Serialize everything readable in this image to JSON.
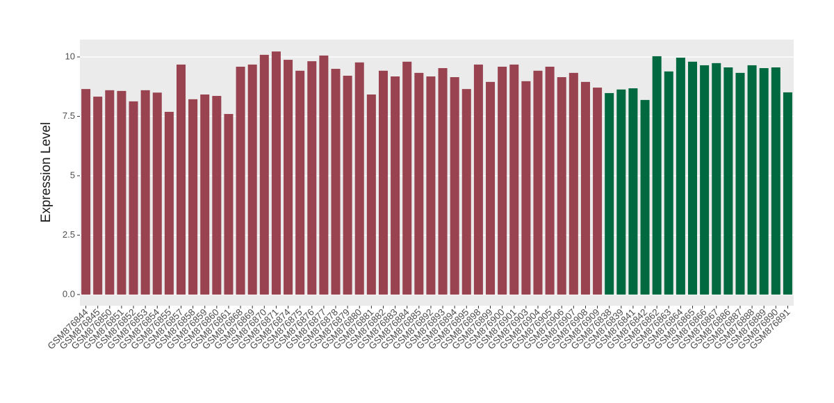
{
  "chart_data": {
    "type": "bar",
    "y_label": "Expression Level",
    "categories": [
      "GSM876844",
      "GSM876845",
      "GSM876850",
      "GSM876851",
      "GSM876852",
      "GSM876853",
      "GSM876854",
      "GSM876855",
      "GSM876857",
      "GSM876858",
      "GSM876859",
      "GSM876860",
      "GSM876861",
      "GSM876868",
      "GSM876869",
      "GSM876870",
      "GSM876871",
      "GSM876874",
      "GSM876875",
      "GSM876876",
      "GSM876877",
      "GSM876878",
      "GSM876879",
      "GSM876880",
      "GSM876881",
      "GSM876882",
      "GSM876883",
      "GSM876884",
      "GSM876885",
      "GSM876892",
      "GSM876893",
      "GSM876894",
      "GSM876895",
      "GSM876898",
      "GSM876899",
      "GSM876900",
      "GSM876901",
      "GSM876903",
      "GSM876904",
      "GSM876905",
      "GSM876906",
      "GSM876907",
      "GSM876908",
      "GSM876909",
      "GSM876838",
      "GSM876839",
      "GSM876841",
      "GSM876842",
      "GSM876862",
      "GSM876863",
      "GSM876864",
      "GSM876865",
      "GSM876866",
      "GSM876867",
      "GSM876886",
      "GSM876887",
      "GSM876888",
      "GSM876889",
      "GSM876890",
      "GSM876891"
    ],
    "values": [
      8.65,
      8.33,
      8.6,
      8.57,
      8.13,
      8.6,
      8.5,
      7.69,
      9.68,
      8.22,
      8.42,
      8.36,
      7.6,
      9.59,
      9.68,
      10.09,
      10.23,
      9.88,
      9.42,
      9.82,
      10.06,
      9.5,
      9.21,
      9.77,
      8.42,
      9.42,
      9.18,
      9.8,
      9.33,
      9.18,
      9.53,
      9.15,
      8.65,
      9.68,
      8.95,
      9.59,
      9.68,
      8.98,
      9.42,
      9.59,
      9.15,
      9.33,
      8.95,
      8.71,
      8.48,
      8.63,
      8.68,
      8.19,
      10.03,
      9.39,
      9.97,
      9.8,
      9.65,
      9.74,
      9.56,
      9.33,
      9.65,
      9.53,
      9.56,
      8.51
    ],
    "colors": [
      "#994350",
      "#994350",
      "#994350",
      "#994350",
      "#994350",
      "#994350",
      "#994350",
      "#994350",
      "#994350",
      "#994350",
      "#994350",
      "#994350",
      "#994350",
      "#994350",
      "#994350",
      "#994350",
      "#994350",
      "#994350",
      "#994350",
      "#994350",
      "#994350",
      "#994350",
      "#994350",
      "#994350",
      "#994350",
      "#994350",
      "#994350",
      "#994350",
      "#994350",
      "#994350",
      "#994350",
      "#994350",
      "#994350",
      "#994350",
      "#994350",
      "#994350",
      "#994350",
      "#994350",
      "#994350",
      "#994350",
      "#994350",
      "#994350",
      "#994350",
      "#994350",
      "#006940",
      "#006940",
      "#006940",
      "#006940",
      "#006940",
      "#006940",
      "#006940",
      "#006940",
      "#006940",
      "#006940",
      "#006940",
      "#006940",
      "#006940",
      "#006940",
      "#006940",
      "#006940"
    ],
    "ylim": [
      -0.47,
      10.73
    ],
    "yticks": [
      {
        "value": 0,
        "label": "0.0"
      },
      2.5,
      5.0,
      7.5,
      10.0
    ],
    "grid": true
  }
}
